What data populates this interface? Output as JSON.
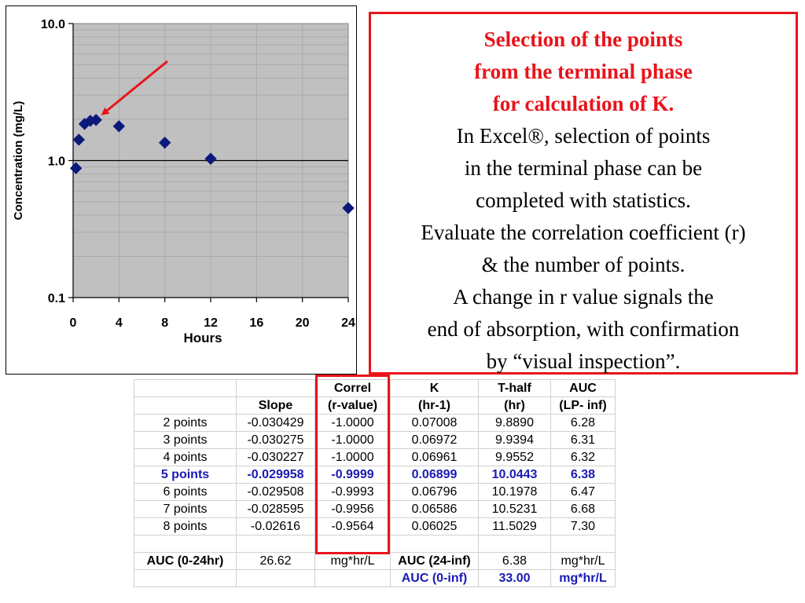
{
  "chart_data": {
    "type": "scatter",
    "x_axis": {
      "label": "Hours",
      "min": 0,
      "max": 24,
      "ticks": [
        "0",
        "4",
        "8",
        "12",
        "16",
        "20",
        "24"
      ]
    },
    "y_axis": {
      "label": "Concentration (mg/L)",
      "scale": "log",
      "min": 0.1,
      "max": 10.0,
      "ticks": [
        "10.0",
        "1.0",
        "0.1"
      ]
    },
    "marker": "diamond",
    "marker_color": "#0b1a7a",
    "plot_background": "#c0c0c0",
    "series": [
      {
        "x": [
          0.25,
          0.5,
          1,
          1.5,
          2,
          4,
          8,
          12,
          24
        ],
        "y": [
          0.88,
          1.42,
          1.85,
          1.95,
          1.98,
          1.78,
          1.35,
          1.03,
          0.45
        ]
      }
    ],
    "annotation": {
      "type": "arrow",
      "color": "#e8141b"
    }
  },
  "text_box": {
    "headline": [
      "Selection of the points",
      "from the terminal phase",
      "for calculation of K."
    ],
    "body": [
      "In Excel®, selection of points",
      "in the terminal phase can be",
      "completed with statistics.",
      "Evaluate the correlation coefficient (r)",
      "& the number of points.",
      "A change in r value signals the",
      "end of absorption, with confirmation",
      "by “visual inspection”."
    ]
  },
  "table": {
    "header_top": [
      "",
      "",
      "Correl",
      "K",
      "T-half",
      "AUC"
    ],
    "header_bottom": [
      "",
      "Slope",
      "(r-value)",
      "(hr-1)",
      "(hr)",
      "(LP- inf)"
    ],
    "rows": [
      [
        "2 points",
        "-0.030429",
        "-1.0000",
        "0.07008",
        "9.8890",
        "6.28"
      ],
      [
        "3 points",
        "-0.030275",
        "-1.0000",
        "0.06972",
        "9.9394",
        "6.31"
      ],
      [
        "4 points",
        "-0.030227",
        "-1.0000",
        "0.06961",
        "9.9552",
        "6.32"
      ],
      [
        "5 points",
        "-0.029958",
        "-0.9999",
        "0.06899",
        "10.0443",
        "6.38"
      ],
      [
        "6 points",
        "-0.029508",
        "-0.9993",
        "0.06796",
        "10.1978",
        "6.47"
      ],
      [
        "7 points",
        "-0.028595",
        "-0.9956",
        "0.06586",
        "10.5231",
        "6.68"
      ],
      [
        "8 points",
        "-0.02616",
        "-0.9564",
        "0.06025",
        "11.5029",
        "7.30"
      ]
    ],
    "selected_row_index": 3,
    "auc_row": [
      "AUC (0-24hr)",
      "26.62",
      "mg*hr/L",
      "AUC (24-inf)",
      "6.38",
      "mg*hr/L"
    ],
    "auc_total_row": [
      "",
      "",
      "",
      "AUC (0-inf)",
      "33.00",
      "mg*hr/L"
    ]
  }
}
